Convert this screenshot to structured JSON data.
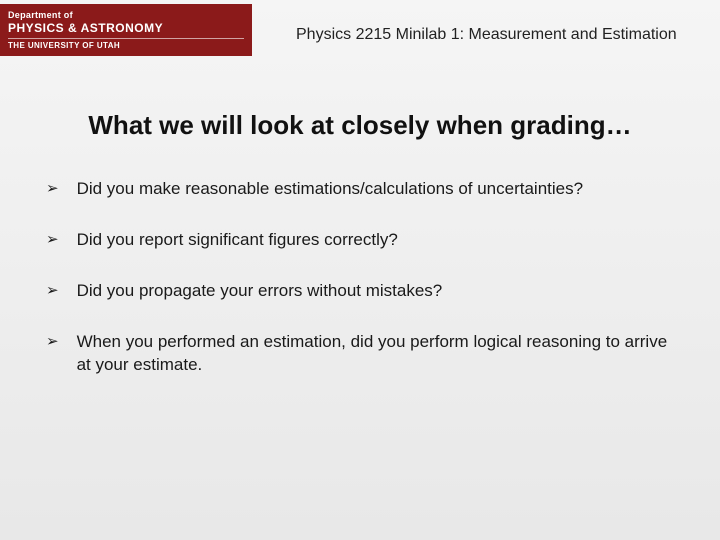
{
  "header": {
    "dept_label": "Department of",
    "dept_name": "PHYSICS & ASTRONOMY",
    "university": "THE UNIVERSITY OF UTAH",
    "bg_color": "#8b1a1a",
    "text_color": "#ffffff"
  },
  "course_title": "Physics 2215  Minilab 1: Measurement and Estimation",
  "heading": "What we will look at closely when grading…",
  "bullets": [
    "Did you make reasonable estimations/calculations of uncertainties?",
    "Did you report significant figures correctly?",
    "Did you propagate your errors without mistakes?",
    "When you performed an estimation, did you perform logical reasoning to arrive at your estimate."
  ],
  "bullet_marker": "➢",
  "styling": {
    "page_bg_top": "#f5f5f5",
    "page_bg_bottom": "#e8e8e8",
    "heading_fontsize": 26,
    "course_title_fontsize": 16,
    "bullet_fontsize": 17,
    "text_color": "#1a1a1a"
  }
}
